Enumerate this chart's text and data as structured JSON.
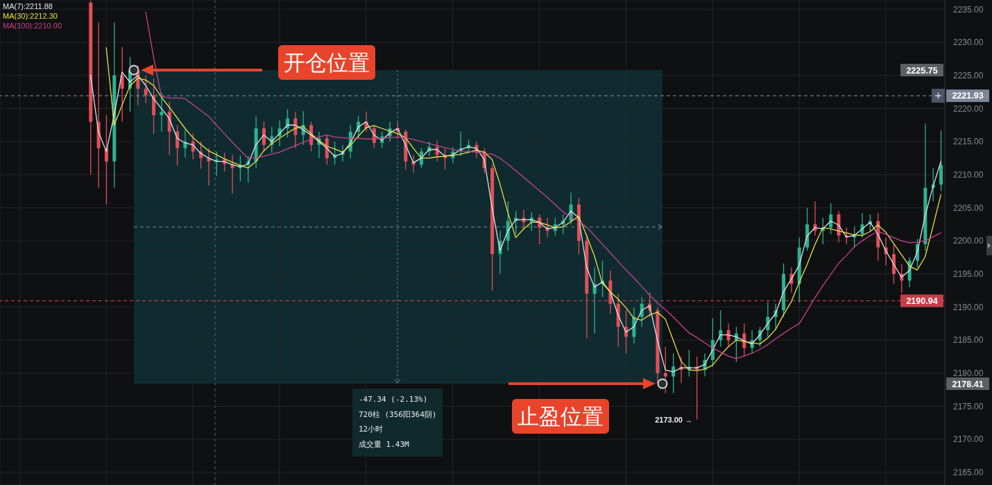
{
  "chart_data": {
    "type": "candlestick",
    "categories": [
      null,
      null,
      null,
      null,
      null,
      null,
      null,
      null,
      null,
      null,
      null,
      null,
      null,
      null,
      null,
      null,
      null,
      null,
      null,
      null,
      null,
      null,
      null,
      null,
      null,
      null,
      null,
      null,
      null,
      null,
      null,
      null,
      null,
      null,
      null,
      null,
      null,
      null,
      null,
      null,
      null,
      null,
      null,
      null,
      null,
      null,
      null,
      null,
      null,
      null,
      null,
      null,
      null,
      null,
      null,
      null,
      null,
      null,
      null,
      null,
      null,
      null,
      null,
      null,
      null,
      null,
      null,
      null,
      null,
      null,
      null,
      null,
      null,
      null,
      null,
      null,
      null,
      null,
      null,
      null,
      null,
      null,
      null,
      null,
      null,
      null,
      null,
      null,
      null,
      null,
      null,
      null,
      null,
      null,
      null,
      null,
      null,
      null,
      null,
      null,
      null,
      null,
      null,
      null,
      null,
      null,
      null,
      null,
      null,
      null,
      null,
      null,
      null,
      null,
      null,
      null,
      null,
      null,
      null,
      null
    ],
    "ohlc": [
      null,
      null,
      null,
      null,
      null,
      null,
      null,
      null,
      null,
      null,
      null,
      [
        2236,
        2236.3,
        2210,
        2218
      ],
      [
        2218,
        2233,
        2208,
        2214
      ],
      [
        2214,
        2219,
        2205.5,
        2212
      ],
      [
        2212,
        2233,
        2208,
        2225
      ],
      [
        2225,
        2229.3,
        2218,
        2223
      ],
      [
        2223,
        2227.8,
        2219.5,
        2225.7
      ],
      [
        2225.7,
        2226.5,
        2220.5,
        2223
      ],
      [
        2223,
        2225,
        2220.8,
        2222
      ],
      [
        2222,
        2224.5,
        2216.2,
        2219
      ],
      [
        2219,
        2222.4,
        2216.5,
        2219.5
      ],
      [
        2219.5,
        2221,
        2213,
        2216.5
      ],
      [
        2216.5,
        2217.5,
        2211.4,
        2214
      ],
      [
        2214,
        2216.8,
        2212.6,
        2215
      ],
      [
        2215,
        2216.2,
        2212.3,
        2213.5
      ],
      [
        2213.5,
        2215,
        2210.9,
        2212.5
      ],
      [
        2212.5,
        2214,
        2208.4,
        2212
      ],
      [
        2212,
        2213.5,
        2209.8,
        2212.3
      ],
      [
        2212.3,
        2213.3,
        2210.5,
        2211.6
      ],
      [
        2211.6,
        2213,
        2207.2,
        2211
      ],
      [
        2211,
        2212.9,
        2209,
        2211.5
      ],
      [
        2211.5,
        2212.8,
        2208.8,
        2212
      ],
      [
        2212,
        2218.8,
        2211,
        2217
      ],
      [
        2217,
        2218,
        2213.5,
        2214.5
      ],
      [
        2214.5,
        2217.2,
        2213.3,
        2215.8
      ],
      [
        2215.8,
        2218.2,
        2214.3,
        2217
      ],
      [
        2217,
        2219.9,
        2215.6,
        2218.5
      ],
      [
        2218.5,
        2219.5,
        2214,
        2216
      ],
      [
        2216,
        2219.6,
        2214.5,
        2217.5
      ],
      [
        2217.5,
        2218,
        2213.5,
        2214.5
      ],
      [
        2214.5,
        2216.5,
        2212.5,
        2215.5
      ],
      [
        2215.5,
        2216,
        2211.5,
        2212.5
      ],
      [
        2212.5,
        2215,
        2211.5,
        2213
      ],
      [
        2213,
        2214.5,
        2212,
        2213.5
      ],
      [
        2213.5,
        2217.5,
        2212.5,
        2216.5
      ],
      [
        2216.5,
        2218.9,
        2215.5,
        2218
      ],
      [
        2218,
        2219.5,
        2216.5,
        2217
      ],
      [
        2217,
        2217.5,
        2214,
        2214.8
      ],
      [
        2214.8,
        2216.5,
        2214,
        2215.8
      ],
      [
        2215.8,
        2218,
        2215,
        2217
      ],
      [
        2217,
        2217.9,
        2215.5,
        2216.5
      ],
      [
        2216.5,
        2216.8,
        2210.8,
        2212
      ],
      [
        2212,
        2213,
        2210.3,
        2211.5
      ],
      [
        2211.5,
        2214,
        2211,
        2213.5
      ],
      [
        2213.5,
        2215,
        2212.8,
        2214.2
      ],
      [
        2214.2,
        2215.2,
        2212,
        2213
      ],
      [
        2213,
        2214,
        2210.8,
        2212.5
      ],
      [
        2212.5,
        2214.2,
        2211.7,
        2213.5
      ],
      [
        2213.5,
        2216.5,
        2212.8,
        2214
      ],
      [
        2214,
        2215.3,
        2213.2,
        2214.5
      ],
      [
        2214.5,
        2215,
        2212.5,
        2213.5
      ],
      [
        2213.5,
        2214,
        2210.2,
        2211
      ],
      [
        2211,
        2211.5,
        2192.5,
        2198
      ],
      [
        2198,
        2201.5,
        2195,
        2200
      ],
      [
        2200,
        2206,
        2198.5,
        2203
      ],
      [
        2203,
        2204.5,
        2201,
        2203.5
      ],
      [
        2203.5,
        2204.7,
        2201.8,
        2202.8
      ],
      [
        2202.8,
        2204.3,
        2201.5,
        2203.5
      ],
      [
        2203.5,
        2204,
        2199.5,
        2202
      ],
      [
        2202,
        2203.5,
        2200.5,
        2201.5
      ],
      [
        2201.5,
        2203.5,
        2200.8,
        2202.5
      ],
      [
        2202.5,
        2204,
        2201,
        2203
      ],
      [
        2203,
        2207.3,
        2202.5,
        2205.5
      ],
      [
        2205.5,
        2206.5,
        2198,
        2200
      ],
      [
        2200,
        2201,
        2185.3,
        2192
      ],
      [
        2192,
        2196,
        2186,
        2193.5
      ],
      [
        2193.5,
        2197,
        2191.5,
        2194
      ],
      [
        2194,
        2195.5,
        2189,
        2190.5
      ],
      [
        2190.5,
        2192,
        2184,
        2187
      ],
      [
        2187,
        2189.5,
        2183,
        2185.5
      ],
      [
        2185.5,
        2190,
        2184.5,
        2188.5
      ],
      [
        2188.5,
        2191.5,
        2187,
        2190.5
      ],
      [
        2190.5,
        2192.2,
        2188.5,
        2189.5
      ],
      [
        2189.5,
        2190,
        2178.5,
        2180
      ],
      [
        2180,
        2184,
        2177,
        2179.5
      ],
      [
        2179.5,
        2183,
        2177,
        2181
      ],
      [
        2181,
        2182.5,
        2178.5,
        2180.5
      ],
      [
        2180.5,
        2183.5,
        2179.5,
        2181
      ],
      [
        2181,
        2182.5,
        2173,
        2180.5
      ],
      [
        2180.5,
        2183,
        2179.5,
        2182
      ],
      [
        2182,
        2188.3,
        2181,
        2185
      ],
      [
        2185,
        2189.5,
        2184,
        2186.5
      ],
      [
        2186.5,
        2187.5,
        2184,
        2185
      ],
      [
        2185,
        2187,
        2181.7,
        2186
      ],
      [
        2186,
        2187.5,
        2182.5,
        2183.8
      ],
      [
        2183.8,
        2186.5,
        2183,
        2185
      ],
      [
        2185,
        2187,
        2184,
        2186.5
      ],
      [
        2186.5,
        2190.8,
        2185.5,
        2188.5
      ],
      [
        2188.5,
        2190.5,
        2186.5,
        2189.5
      ],
      [
        2189.5,
        2196.6,
        2188.5,
        2195
      ],
      [
        2195,
        2196,
        2192.2,
        2193.5
      ],
      [
        2193.5,
        2200.5,
        2190.7,
        2199
      ],
      [
        2199,
        2205,
        2198.5,
        2202.5
      ],
      [
        2202.5,
        2206,
        2200.8,
        2201.5
      ],
      [
        2201.5,
        2203.5,
        2199.5,
        2202
      ],
      [
        2202,
        2205.7,
        2201,
        2204
      ],
      [
        2204,
        2204.5,
        2199.8,
        2200.8
      ],
      [
        2200.8,
        2202,
        2199.5,
        2200.5
      ],
      [
        2200.5,
        2202.2,
        2199,
        2201
      ],
      [
        2201,
        2204.2,
        2200.5,
        2202.5
      ],
      [
        2202.5,
        2204,
        2201.5,
        2203
      ],
      [
        2203,
        2204.2,
        2197,
        2199
      ],
      [
        2199,
        2200.5,
        2196.3,
        2198
      ],
      [
        2198,
        2199.5,
        2193.5,
        2195
      ],
      [
        2195,
        2196.5,
        2192.1,
        2194
      ],
      [
        2194,
        2197.5,
        2193,
        2197
      ],
      [
        2197,
        2200.3,
        2196,
        2199.5
      ],
      [
        2199.5,
        2217.7,
        2198.5,
        2208
      ],
      [
        2208,
        2211,
        2206,
        2208.5
      ],
      [
        2208.5,
        2216.7,
        2207.5,
        2211.5
      ]
    ],
    "colors": [
      null,
      null,
      null,
      null,
      null,
      null,
      null,
      null,
      null,
      null,
      null,
      "#e2505a",
      "#e2505a",
      "#e2505a",
      "#2bb38f",
      "#e2505a",
      "#2bb38f",
      "#e2505a",
      "#e2505a",
      "#e2505a",
      "#2bb38f",
      "#e2505a",
      "#e2505a",
      "#2bb38f",
      "#e2505a",
      "#e2505a",
      "#e2505a",
      "#2bb38f",
      "#e2505a",
      "#e2505a",
      "#2bb38f",
      "#2bb38f",
      "#2bb38f",
      "#e2505a",
      "#2bb38f",
      "#2bb38f",
      "#2bb38f",
      "#e2505a",
      "#2bb38f",
      "#e2505a",
      "#2bb38f",
      "#e2505a",
      "#2bb38f",
      "#2bb38f",
      "#2bb38f",
      "#2bb38f",
      "#e2505a",
      "#e2505a",
      "#2bb38f",
      "#2bb38f",
      "#e2505a",
      "#e2505a",
      "#e2505a",
      "#2bb38f",
      "#2bb38f",
      "#e2505a",
      "#e2505a",
      "#2bb38f",
      "#2bb38f",
      "#2bb38f",
      "#e2505a",
      "#e2505a",
      "#e2505a",
      "#2bb38f",
      "#2bb38f",
      "#2bb38f",
      "#e2505a",
      "#2bb38f",
      "#e2505a",
      "#e2505a",
      "#2bb38f",
      "#2bb38f",
      "#2bb38f",
      "#e2505a",
      "#e2505a",
      "#2bb38f",
      "#2bb38f",
      "#e2505a",
      "#e2505a",
      "#e2505a",
      "#2bb38f",
      "#2bb38f",
      "#e2505a",
      "#e2505a",
      "#e2505a",
      "#2bb38f",
      "#e2505a",
      "#2bb38f",
      "#e2505a",
      "#2bb38f",
      "#2bb38f",
      "#2bb38f",
      "#e2505a",
      "#2bb38f",
      "#e2505a",
      "#2bb38f",
      "#2bb38f",
      "#2bb38f",
      "#2bb38f",
      "#2bb38f",
      "#e2505a",
      "#2bb38f",
      "#2bb38f",
      "#e2505a",
      "#2bb38f",
      "#2bb38f",
      "#e2505a",
      "#e2505a",
      "#2bb38f",
      "#2bb38f",
      "#2bb38f",
      "#e2505a",
      "#e2505a",
      "#e2505a",
      "#e2505a",
      "#2bb38f",
      "#2bb38f",
      "#2bb38f",
      "#2bb38f",
      "#2bb38f"
    ],
    "series": [
      {
        "name": "MA(7):2211.88",
        "type": "line",
        "color": "#dfe3e8",
        "values": [
          null,
          null,
          null,
          null,
          null,
          null,
          null,
          null,
          null,
          null,
          null,
          2225,
          2216.5,
          2213.5,
          2219,
          2225.5,
          2224,
          2225,
          2223.5,
          2221.5,
          2220,
          2218.5,
          2215.5,
          2214.8,
          2214.5,
          2213.2,
          2212.5,
          2212,
          2212,
          2211.5,
          2211.2,
          2211.6,
          2214.5,
          2216,
          2215,
          2216.2,
          2217.5,
          2217.5,
          2216.8,
          2216,
          2215,
          2214,
          2212.8,
          2213.2,
          2214.8,
          2217.2,
          2218,
          2216,
          2215.2,
          2216.3,
          2217,
          2214.5,
          2211.8,
          2212.5,
          2213.8,
          2213.8,
          2212.8,
          2213,
          2213.8,
          2214.2,
          2214,
          2212.3,
          2205,
          2198.5,
          2201.5,
          2203.2,
          2203.2,
          2203.2,
          2202.8,
          2201.8,
          2202,
          2202.8,
          2204.5,
          2203.5,
          2196,
          2193,
          2193.8,
          2192.3,
          2188.8,
          2186.2,
          2187,
          2189.5,
          2190.2,
          2185,
          2180.5,
          2180.2,
          2180.8,
          2180.8,
          2180.8,
          2181.3,
          2183.5,
          2185.8,
          2185.8,
          2185.5,
          2184.9,
          2184.4,
          2185.8,
          2187.5,
          2189,
          2192.3,
          2194.2,
          2196.3,
          2200.7,
          2202,
          2201.8,
          2203,
          2202.4,
          2200.6,
          2200.8,
          2201.8,
          2202.8,
          2201,
          2198.5,
          2196.5,
          2194.5,
          2195.5,
          2198.3,
          2203.8,
          2208.2,
          2212
        ]
      },
      {
        "name": "MA(30):2212.30",
        "type": "line",
        "color": "#ecdf4a",
        "values": [
          null,
          null,
          null,
          null,
          null,
          null,
          null,
          null,
          null,
          null,
          null,
          null,
          null,
          2229.2,
          2217.5,
          2220.5,
          2223.4,
          2224.6,
          2224.3,
          2223.5,
          2221.7,
          2220.2,
          2218.6,
          2217,
          2215.6,
          2214.6,
          2213.6,
          2213,
          2212.4,
          2211.9,
          2211.4,
          2211,
          2212,
          2213.6,
          2214.7,
          2215.5,
          2216.3,
          2217,
          2217.3,
          2216.2,
          2215.2,
          2214.3,
          2213.9,
          2213.4,
          2214.4,
          2215.8,
          2217.1,
          2217.4,
          2217,
          2216.6,
          2216.2,
          2215.6,
          2214,
          2212.5,
          2212.5,
          2212.7,
          2212.8,
          2212.9,
          2213.1,
          2213.4,
          2213.7,
          2213.4,
          2212.3,
          2208.6,
          2204.3,
          2200.5,
          2201.8,
          2202.8,
          2202.8,
          2202.4,
          2202,
          2202.1,
          2202.9,
          2203.7,
          2200.8,
          2197.7,
          2193.6,
          2192.3,
          2191.2,
          2189.9,
          2188.3,
          2188,
          2188.8,
          2189.2,
          2188.2,
          2185,
          2181.8,
          2180.5,
          2180.4,
          2180.6,
          2181.2,
          2182.7,
          2184,
          2185,
          2184.8,
          2184.6,
          2184.4,
          2185.3,
          2186.6,
          2188.8,
          2190.8,
          2193.7,
          2196.4,
          2199.4,
          2202,
          2201.8,
          2201.5,
          2201.2,
          2200.9,
          2200.8,
          2201.4,
          2202.4,
          2201.3,
          2199.6,
          2197.9,
          2196.2,
          2195.6,
          2197.6,
          2202.2,
          2207
        ]
      },
      {
        "name": "MA(100):2210.00",
        "type": "line",
        "color": "#c8438f",
        "values": [
          null,
          null,
          null,
          null,
          null,
          null,
          null,
          null,
          null,
          null,
          null,
          null,
          null,
          null,
          null,
          null,
          null,
          null,
          2234.6,
          2227.8,
          2221.8,
          2221.6,
          2221.6,
          2221.5,
          2220.6,
          2219.7,
          2218.8,
          2217.5,
          2216.2,
          2214.9,
          2213.7,
          2212.5,
          2212.5,
          2212.8,
          2213.1,
          2213.4,
          2213.9,
          2214.4,
          2214.9,
          2215.3,
          2215.7,
          2216,
          2215.7,
          2215.6,
          2215.5,
          2215.5,
          2215.4,
          2215.4,
          2215.5,
          2215.6,
          2215.7,
          2215.6,
          2215.3,
          2215,
          2214.7,
          2214.4,
          2214.1,
          2213.8,
          2213.6,
          2213.5,
          2213.4,
          2213.2,
          2213.1,
          2212.5,
          2211.6,
          2210.6,
          2209.6,
          2208.6,
          2207.6,
          2206.6,
          2205.5,
          2204.4,
          2203.6,
          2203,
          2202.1,
          2200.8,
          2199.5,
          2198.2,
          2196.9,
          2195.6,
          2194.4,
          2193.1,
          2191.8,
          2190.6,
          2189.6,
          2188.5,
          2187.3,
          2186.1,
          2185.4,
          2184.6,
          2183.8,
          2183.2,
          2182.6,
          2182.2,
          2182.6,
          2183,
          2183.6,
          2184.3,
          2185.2,
          2186,
          2186.8,
          2187.5,
          2189.4,
          2191.4,
          2193.2,
          2194.9,
          2196.6,
          2197.8,
          2199.1,
          2200,
          2200.8,
          2201.4,
          2201,
          2200.5,
          2200,
          2199.7,
          2199.8,
          2200,
          2200.6,
          2201.2
        ]
      }
    ],
    "ylim": [
      2163.1,
      2236.4
    ],
    "yticks": [
      {
        "value": 2165,
        "label": "2165.00"
      },
      {
        "value": 2170,
        "label": "2170.00"
      },
      {
        "value": 2175,
        "label": "2175.00"
      },
      {
        "value": 2180,
        "label": "2180.00"
      },
      {
        "value": 2185,
        "label": "2185.00"
      },
      {
        "value": 2190,
        "label": "2190.00"
      },
      {
        "value": 2195,
        "label": "2195.00"
      },
      {
        "value": 2200,
        "label": "2200.00"
      },
      {
        "value": 2205,
        "label": "2205.00"
      },
      {
        "value": 2210,
        "label": "2210.00"
      },
      {
        "value": 2215,
        "label": "2215.00"
      },
      {
        "value": 2220,
        "label": "2220.00"
      },
      {
        "value": 2225,
        "label": "2225.00"
      },
      {
        "value": 2230,
        "label": "2230.00"
      },
      {
        "value": 2235,
        "label": "2235.00"
      }
    ],
    "ref_lines": [
      {
        "axis": "y",
        "value": 2221.93,
        "label": "2221.93",
        "color": "#8a93a6",
        "line_style": "dashed"
      },
      {
        "axis": "y",
        "value": 2190.94,
        "label": "2190.94",
        "color": "#d9444e",
        "line_style": "dashed"
      },
      {
        "axis": "y",
        "value": 2202.1,
        "color": "#8fa3a6",
        "line_style": "dashed"
      }
    ],
    "annotations": [
      "开仓位置",
      "止盈位置",
      "2225.75",
      "2178.41",
      "2173.00 →",
      "-47.34 (-2.13%)",
      "720柱 (356阳364阴)",
      "12小时",
      "成交量 1.43M"
    ],
    "grid": true,
    "legend": "top left",
    "tick_labels": "y"
  }
}
